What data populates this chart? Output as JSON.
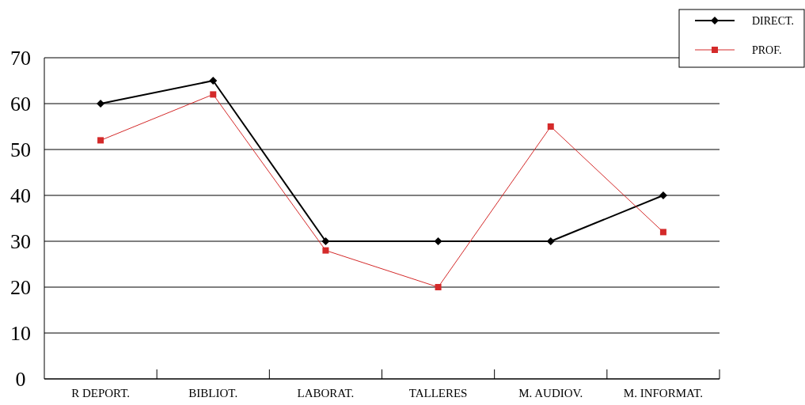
{
  "chart_data": {
    "type": "line",
    "categories": [
      "R DEPORT.",
      "BIBLIOT.",
      "LABORAT.",
      "TALLERES",
      "M. AUDIOV.",
      "M. INFORMAT."
    ],
    "series": [
      {
        "name": "DIRECT.",
        "color": "#000000",
        "marker": "diamond",
        "values": [
          60,
          65,
          30,
          30,
          30,
          40
        ]
      },
      {
        "name": "PROF.",
        "color": "#d42a2a",
        "marker": "square",
        "values": [
          52,
          62,
          28,
          20,
          55,
          32
        ]
      }
    ],
    "ylim": [
      0,
      70
    ],
    "yticks": [
      0,
      10,
      20,
      30,
      40,
      50,
      60,
      70
    ],
    "grid": "y",
    "legend": "top right"
  }
}
